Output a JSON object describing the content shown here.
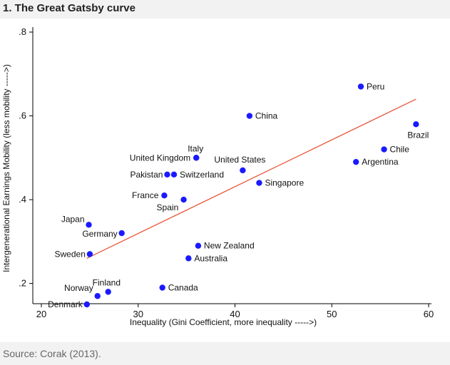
{
  "figure": {
    "title": "1. The Great Gatsby curve",
    "source": "Source: Corak (2013)."
  },
  "colors": {
    "point": "#1a1aff",
    "fit_line": "#e8553a",
    "axis": "#000000",
    "header_bg": "#f2f2f2"
  },
  "chart_data": {
    "type": "scatter",
    "title": "",
    "xlabel": "Inequality (Gini Coefficient, more inequality ----->)",
    "ylabel": "Intergenerational Earnings Mobility (less mobility ----->)",
    "xlim": [
      20,
      60
    ],
    "ylim": [
      0.15,
      0.8
    ],
    "x_ticks": [
      20,
      30,
      40,
      50,
      60
    ],
    "x_tick_labels": [
      "20",
      "30",
      "40",
      "50",
      "60"
    ],
    "y_ticks": [
      0.2,
      0.4,
      0.6,
      0.8
    ],
    "y_tick_labels": [
      ".2",
      ".4",
      ".6",
      ".8"
    ],
    "grid": false,
    "points": [
      {
        "label": "Peru",
        "x": 53.0,
        "y": 0.67
      },
      {
        "label": "China",
        "x": 41.5,
        "y": 0.6
      },
      {
        "label": "Brazil",
        "x": 58.7,
        "y": 0.58
      },
      {
        "label": "Chile",
        "x": 55.4,
        "y": 0.52
      },
      {
        "label": "Argentina",
        "x": 52.5,
        "y": 0.49
      },
      {
        "label": "Italy",
        "x": 36.0,
        "y": 0.5
      },
      {
        "label": "United Kingdom",
        "x": 36.0,
        "y": 0.5
      },
      {
        "label": "United States",
        "x": 40.8,
        "y": 0.47
      },
      {
        "label": "Pakistan",
        "x": 33.0,
        "y": 0.46
      },
      {
        "label": "Switzerland",
        "x": 33.7,
        "y": 0.46
      },
      {
        "label": "Singapore",
        "x": 42.5,
        "y": 0.44
      },
      {
        "label": "France",
        "x": 32.7,
        "y": 0.41
      },
      {
        "label": "Spain",
        "x": 34.7,
        "y": 0.4
      },
      {
        "label": "Japan",
        "x": 24.9,
        "y": 0.34
      },
      {
        "label": "Germany",
        "x": 28.3,
        "y": 0.32
      },
      {
        "label": "New Zealand",
        "x": 36.2,
        "y": 0.29
      },
      {
        "label": "Sweden",
        "x": 25.0,
        "y": 0.27
      },
      {
        "label": "Australia",
        "x": 35.2,
        "y": 0.26
      },
      {
        "label": "Canada",
        "x": 32.5,
        "y": 0.19
      },
      {
        "label": "Finland",
        "x": 26.9,
        "y": 0.18
      },
      {
        "label": "Norway",
        "x": 25.8,
        "y": 0.17
      },
      {
        "label": "Denmark",
        "x": 24.7,
        "y": 0.15
      }
    ],
    "fit_line": {
      "x": [
        24.7,
        58.7
      ],
      "y": [
        0.26,
        0.64
      ]
    }
  }
}
